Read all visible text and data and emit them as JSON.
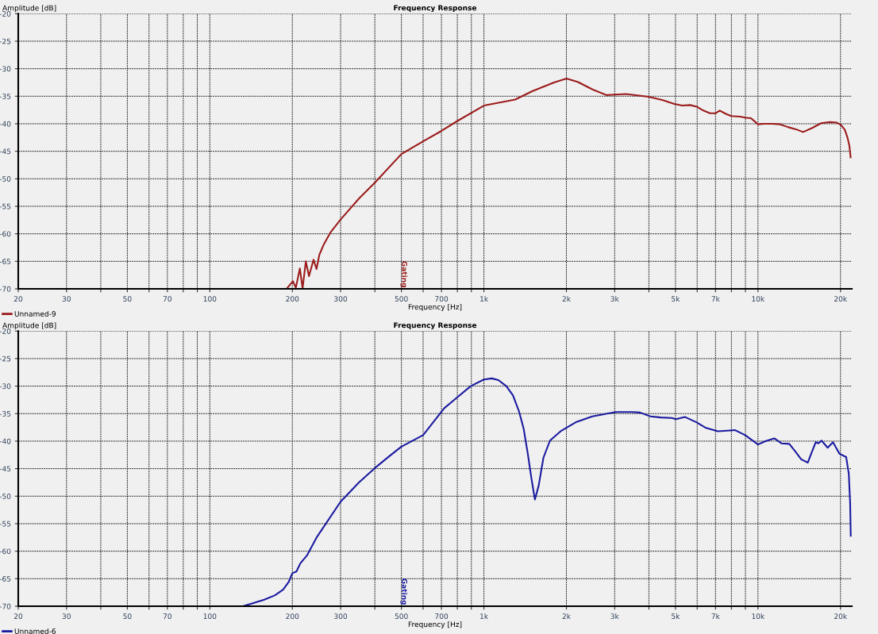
{
  "chart_data": [
    {
      "type": "line",
      "title": "Frequency Response",
      "xlabel": "Frequency [Hz]",
      "ylabel": "Amplitude [dB]",
      "log": "x",
      "grid": true,
      "legend": "bottom left",
      "line_style": "solid",
      "xlim": [
        20,
        22000
      ],
      "ylim": [
        -70,
        -20
      ],
      "xticks": [
        20,
        30,
        {
          "value": 40,
          "label": null
        },
        50,
        {
          "value": 60,
          "label": null
        },
        70,
        {
          "value": 80,
          "label": null
        },
        {
          "value": 90,
          "label": null
        },
        100,
        200,
        300,
        {
          "value": 400,
          "label": null
        },
        500,
        {
          "value": 600,
          "label": null
        },
        700,
        {
          "value": 800,
          "label": null
        },
        {
          "value": 900,
          "label": null
        },
        {
          "value": 1000,
          "label": "1k"
        },
        {
          "value": 2000,
          "label": "2k"
        },
        {
          "value": 3000,
          "label": "3k"
        },
        {
          "value": 4000,
          "label": null
        },
        {
          "value": 5000,
          "label": "5k"
        },
        {
          "value": 6000,
          "label": null
        },
        {
          "value": 7000,
          "label": "7k"
        },
        {
          "value": 8000,
          "label": null
        },
        {
          "value": 9000,
          "label": null
        },
        {
          "value": 10000,
          "label": "10k"
        },
        {
          "value": 20000,
          "label": "20k"
        }
      ],
      "yticks": [
        -20,
        -25,
        -30,
        -35,
        -40,
        -45,
        -50,
        -55,
        -60,
        -65,
        -70
      ],
      "annotations": [
        "Gating"
      ],
      "series": [
        {
          "name": "Unnamed-9",
          "color": "#9b1c1c",
          "x": [
            192,
            201,
            206,
            213,
            218,
            224,
            230,
            239,
            245,
            251,
            260,
            276,
            300,
            350,
            400,
            500,
            600,
            700,
            800,
            1000,
            1300,
            1500,
            1800,
            2000,
            2200,
            2500,
            2800,
            3000,
            3300,
            4000,
            4500,
            4950,
            5291,
            5657,
            5978,
            6322,
            6683,
            6988,
            7254,
            7637,
            7987,
            8625,
            8977,
            9431,
            10000,
            10533,
            11256,
            12034,
            12861,
            13748,
            14600,
            15715,
            16990,
            18284,
            19412,
            20067,
            20747,
            21210,
            21551,
            21780
          ],
          "values": [
            -69.8,
            -68.6,
            -69.8,
            -66.3,
            -69.9,
            -65.0,
            -67.7,
            -64.7,
            -66.4,
            -63.8,
            -62.0,
            -59.7,
            -57.4,
            -53.6,
            -50.7,
            -45.5,
            -43.2,
            -41.3,
            -39.5,
            -36.7,
            -35.6,
            -34.1,
            -32.5,
            -31.8,
            -32.4,
            -33.8,
            -34.8,
            -34.7,
            -34.6,
            -35.1,
            -35.7,
            -36.4,
            -36.7,
            -36.6,
            -36.9,
            -37.6,
            -38.1,
            -38.1,
            -37.6,
            -38.2,
            -38.6,
            -38.7,
            -38.9,
            -39.0,
            -40.1,
            -40.0,
            -40.0,
            -40.1,
            -40.6,
            -41.0,
            -41.5,
            -40.8,
            -39.9,
            -39.7,
            -39.8,
            -40.2,
            -41.1,
            -42.5,
            -44.0,
            -46.1
          ]
        }
      ]
    },
    {
      "type": "line",
      "title": "Frequency Response",
      "xlabel": "Frequency [Hz]",
      "ylabel": "Amplitude [dB]",
      "log": "x",
      "grid": true,
      "legend": "bottom left",
      "line_style": "solid",
      "xlim": [
        20,
        22000
      ],
      "ylim": [
        -70,
        -20
      ],
      "xticks": [
        20,
        30,
        {
          "value": 40,
          "label": null
        },
        50,
        {
          "value": 60,
          "label": null
        },
        70,
        {
          "value": 80,
          "label": null
        },
        {
          "value": 90,
          "label": null
        },
        100,
        200,
        300,
        {
          "value": 400,
          "label": null
        },
        500,
        {
          "value": 600,
          "label": null
        },
        700,
        {
          "value": 800,
          "label": null
        },
        {
          "value": 900,
          "label": null
        },
        {
          "value": 1000,
          "label": "1k"
        },
        {
          "value": 2000,
          "label": "2k"
        },
        {
          "value": 3000,
          "label": "3k"
        },
        {
          "value": 4000,
          "label": null
        },
        {
          "value": 5000,
          "label": "5k"
        },
        {
          "value": 6000,
          "label": null
        },
        {
          "value": 7000,
          "label": "7k"
        },
        {
          "value": 8000,
          "label": null
        },
        {
          "value": 9000,
          "label": null
        },
        {
          "value": 10000,
          "label": "10k"
        },
        {
          "value": 20000,
          "label": "20k"
        }
      ],
      "yticks": [
        -20,
        -25,
        -30,
        -35,
        -40,
        -45,
        -50,
        -55,
        -60,
        -65,
        -70
      ],
      "annotations": [
        "Gating"
      ],
      "series": [
        {
          "name": "Unnamed-6",
          "color": "#1a1aa0",
          "x": [
            132,
            145,
            158,
            173,
            185,
            194,
            200,
            207,
            214,
            226,
            246,
            300,
            350,
            400,
            450,
            500,
            600,
            717,
            801,
            895,
            1000,
            1069,
            1129,
            1207,
            1277,
            1343,
            1396,
            1443,
            1491,
            1535,
            1584,
            1649,
            1742,
            1905,
            2178,
            2487,
            3038,
            3472,
            3710,
            4053,
            4428,
            4843,
            5026,
            5408,
            5978,
            6463,
            7142,
            7723,
            8254,
            8977,
            10000,
            10650,
            11464,
            12173,
            13007,
            13748,
            14380,
            15200,
            15715,
            16240,
            16610,
            17060,
            17960,
            18780,
            19840,
            20980,
            21440,
            21690,
            21800
          ],
          "values": [
            -70.0,
            -69.4,
            -68.8,
            -68.0,
            -67.0,
            -65.6,
            -64.0,
            -63.7,
            -62.2,
            -60.8,
            -57.4,
            -51.0,
            -47.5,
            -44.9,
            -42.8,
            -41.0,
            -38.9,
            -34.0,
            -32.0,
            -30.0,
            -28.8,
            -28.6,
            -28.9,
            -30.0,
            -31.7,
            -34.6,
            -37.7,
            -42.0,
            -46.8,
            -50.6,
            -48.1,
            -43.0,
            -39.9,
            -38.2,
            -36.5,
            -35.5,
            -34.7,
            -34.7,
            -34.8,
            -35.5,
            -35.7,
            -35.8,
            -36.0,
            -35.6,
            -36.6,
            -37.6,
            -38.2,
            -38.1,
            -38.0,
            -38.9,
            -40.6,
            -40.0,
            -39.5,
            -40.4,
            -40.5,
            -42.0,
            -43.3,
            -43.9,
            -42.0,
            -40.2,
            -40.4,
            -39.9,
            -41.2,
            -40.2,
            -42.3,
            -42.9,
            -45.9,
            -51.2,
            -57.2
          ]
        }
      ]
    }
  ]
}
